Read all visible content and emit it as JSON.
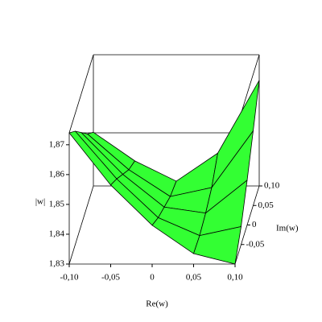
{
  "chart_data": {
    "type": "surface",
    "xlabel": "Re(w)",
    "ylabel": "Im(w)",
    "zlabel": "|w|",
    "x": [
      -0.1,
      -0.05,
      0,
      0.05,
      0.1
    ],
    "y": [
      -0.1,
      -0.05,
      0,
      0.05,
      0.1
    ],
    "z": [
      [
        1.874,
        1.868,
        1.861,
        1.854,
        1.848
      ],
      [
        1.8565,
        1.852,
        1.847,
        1.842,
        1.8384
      ],
      [
        1.843,
        1.839,
        1.836,
        1.833,
        1.8316
      ],
      [
        1.8335,
        1.833,
        1.834,
        1.836,
        1.841
      ],
      [
        1.83,
        1.836,
        1.845,
        1.855,
        1.8654
      ]
    ],
    "color": "#33ff33",
    "xlim": [
      -0.1,
      0.1
    ],
    "ylim": [
      -0.1,
      0.1
    ],
    "zlim": [
      1.83,
      1.874
    ],
    "xticks": [
      {
        "value": -0.1,
        "label": "-0,10"
      },
      {
        "value": -0.05,
        "label": "-0,05"
      },
      0,
      {
        "value": 0.05,
        "label": "0,05"
      },
      {
        "value": 0.1,
        "label": "0,10"
      }
    ],
    "yticks": [
      {
        "value": -0.05,
        "label": "-0,05"
      },
      0,
      {
        "value": 0.05,
        "label": "0,05"
      },
      {
        "value": 0.1,
        "label": "0,10"
      }
    ],
    "zticks": [
      {
        "value": 1.83,
        "label": "1,83"
      },
      {
        "value": 1.84,
        "label": "1,84"
      },
      {
        "value": 1.85,
        "label": "1,85"
      },
      {
        "value": 1.86,
        "label": "1,86"
      },
      {
        "value": 1.87,
        "label": "1,87"
      }
    ]
  }
}
